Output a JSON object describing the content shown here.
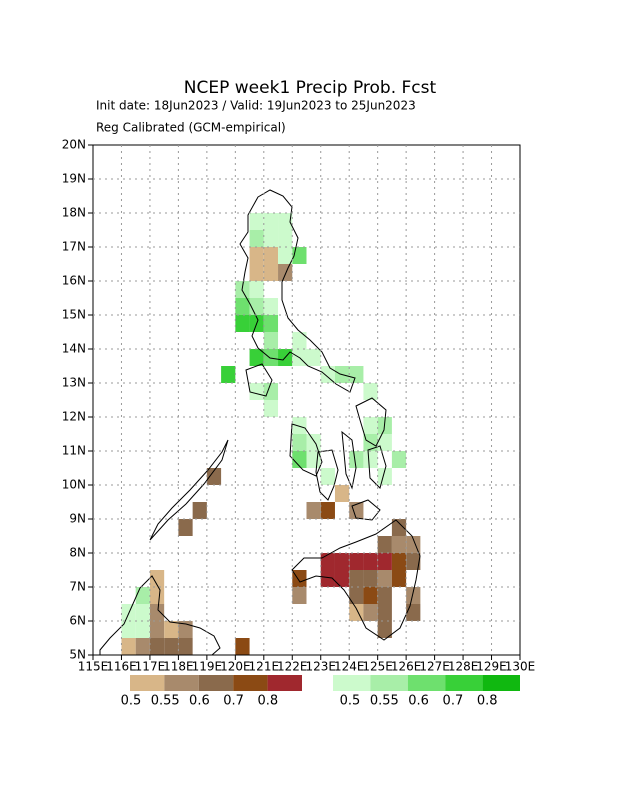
{
  "chart_data": {
    "type": "gridmap",
    "title": "NCEP week1 Precip Prob. Fcst",
    "subtitle": "Init date: 18Jun2023 / Valid: 19Jun2023 to 25Jun2023",
    "note": "Reg Calibrated (GCM-empirical)",
    "xlim": [
      115,
      130
    ],
    "ylim": [
      5,
      20
    ],
    "xticks": [
      {
        "value": 115,
        "label": "115E"
      },
      {
        "value": 116,
        "label": "116E"
      },
      {
        "value": 117,
        "label": "117E"
      },
      {
        "value": 118,
        "label": "118E"
      },
      {
        "value": 119,
        "label": "119E"
      },
      {
        "value": 120,
        "label": "120E"
      },
      {
        "value": 121,
        "label": "121E"
      },
      {
        "value": 122,
        "label": "122E"
      },
      {
        "value": 123,
        "label": "123E"
      },
      {
        "value": 124,
        "label": "124E"
      },
      {
        "value": 125,
        "label": "125E"
      },
      {
        "value": 126,
        "label": "126E"
      },
      {
        "value": 127,
        "label": "127E"
      },
      {
        "value": 128,
        "label": "128E"
      },
      {
        "value": 129,
        "label": "129E"
      },
      {
        "value": 130,
        "label": "130E"
      }
    ],
    "yticks": [
      {
        "value": 5,
        "label": "5N"
      },
      {
        "value": 6,
        "label": "6N"
      },
      {
        "value": 7,
        "label": "7N"
      },
      {
        "value": 8,
        "label": "8N"
      },
      {
        "value": 9,
        "label": "9N"
      },
      {
        "value": 10,
        "label": "10N"
      },
      {
        "value": 11,
        "label": "11N"
      },
      {
        "value": 12,
        "label": "12N"
      },
      {
        "value": 13,
        "label": "13N"
      },
      {
        "value": 14,
        "label": "14N"
      },
      {
        "value": 15,
        "label": "15N"
      },
      {
        "value": 16,
        "label": "16N"
      },
      {
        "value": 17,
        "label": "17N"
      },
      {
        "value": 18,
        "label": "18N"
      },
      {
        "value": 19,
        "label": "19N"
      },
      {
        "value": 20,
        "label": "20N"
      }
    ],
    "grid": true,
    "dry": {
      "levels": [
        0.5,
        0.55,
        0.6,
        0.7,
        0.8
      ],
      "colors": [
        "#d8b688",
        "#a88a6c",
        "#8a6a4c",
        "#8b4a14",
        "#a0282e"
      ],
      "cells": [
        [
          120.5,
          16.5,
          0
        ],
        [
          121,
          16.5,
          0
        ],
        [
          120.5,
          16,
          0
        ],
        [
          121,
          16,
          0
        ],
        [
          121.5,
          16,
          1
        ],
        [
          119,
          10,
          2
        ],
        [
          118.5,
          9,
          2
        ],
        [
          118,
          8.5,
          2
        ],
        [
          117,
          7,
          0
        ],
        [
          117,
          6.5,
          0
        ],
        [
          117,
          6,
          1
        ],
        [
          116,
          5,
          0
        ],
        [
          116.5,
          5,
          1
        ],
        [
          117,
          5,
          2
        ],
        [
          117.5,
          5,
          2
        ],
        [
          118,
          5,
          2
        ],
        [
          117,
          5.5,
          1
        ],
        [
          117.5,
          5.5,
          0
        ],
        [
          118,
          5.5,
          1
        ],
        [
          120,
          5,
          3
        ],
        [
          123,
          7.5,
          4
        ],
        [
          123.5,
          7.5,
          4
        ],
        [
          124,
          7.5,
          4
        ],
        [
          124.5,
          7.5,
          4
        ],
        [
          125,
          7.5,
          4
        ],
        [
          123,
          7,
          4
        ],
        [
          123.5,
          7,
          4
        ],
        [
          125.5,
          8.5,
          2
        ],
        [
          125,
          8,
          2
        ],
        [
          125.5,
          8,
          1
        ],
        [
          126,
          8,
          1
        ],
        [
          125.5,
          7.5,
          3
        ],
        [
          126,
          7.5,
          2
        ],
        [
          124.5,
          7,
          2
        ],
        [
          125,
          7,
          1
        ],
        [
          125.5,
          7,
          3
        ],
        [
          124,
          7,
          2
        ],
        [
          124,
          6.5,
          2
        ],
        [
          124.5,
          6.5,
          3
        ],
        [
          125,
          6.5,
          2
        ],
        [
          126,
          6.5,
          1
        ],
        [
          126,
          6,
          2
        ],
        [
          124,
          6,
          0
        ],
        [
          124.5,
          6,
          1
        ],
        [
          125,
          6,
          2
        ],
        [
          125,
          5.5,
          2
        ],
        [
          122,
          7,
          3
        ],
        [
          122,
          6.5,
          1
        ],
        [
          123,
          9,
          3
        ],
        [
          122.5,
          9,
          1
        ],
        [
          123.5,
          9.5,
          0
        ],
        [
          124,
          9,
          1
        ]
      ]
    },
    "wet": {
      "levels": [
        0.5,
        0.55,
        0.6,
        0.7,
        0.8
      ],
      "colors": [
        "#ccfacc",
        "#a8eea8",
        "#6ee06e",
        "#38d038",
        "#10b810"
      ],
      "cells": [
        [
          120.5,
          17.5,
          0
        ],
        [
          121,
          17.5,
          0
        ],
        [
          121.5,
          17.5,
          0
        ],
        [
          121,
          17,
          0
        ],
        [
          121.5,
          17,
          0
        ],
        [
          120.5,
          17,
          1
        ],
        [
          122,
          16.5,
          2
        ],
        [
          121.5,
          16.5,
          0
        ],
        [
          120,
          15.5,
          1
        ],
        [
          120.5,
          15.5,
          0
        ],
        [
          120,
          15,
          2
        ],
        [
          120.5,
          15,
          1
        ],
        [
          121,
          15,
          0
        ],
        [
          120,
          14.5,
          3
        ],
        [
          120.5,
          14.5,
          3
        ],
        [
          121,
          14.5,
          2
        ],
        [
          121,
          14,
          1
        ],
        [
          120.5,
          13.5,
          3
        ],
        [
          121,
          13.5,
          2
        ],
        [
          121.5,
          13.5,
          3
        ],
        [
          122,
          13.5,
          0
        ],
        [
          119.5,
          13,
          3
        ],
        [
          120.5,
          12.5,
          0
        ],
        [
          121,
          12.5,
          1
        ],
        [
          121,
          12,
          0
        ],
        [
          122,
          14,
          0
        ],
        [
          122.5,
          13.5,
          0
        ],
        [
          123,
          13,
          0
        ],
        [
          123.5,
          13,
          1
        ],
        [
          124,
          13,
          1
        ],
        [
          124.5,
          12.5,
          0
        ],
        [
          124.5,
          11.5,
          0
        ],
        [
          125,
          11.5,
          1
        ],
        [
          125,
          11,
          0
        ],
        [
          124.5,
          11,
          1
        ],
        [
          124,
          10.5,
          1
        ],
        [
          125.5,
          10.5,
          1
        ],
        [
          125,
          10,
          0
        ],
        [
          122,
          11,
          1
        ],
        [
          122,
          10.5,
          2
        ],
        [
          122.5,
          10.5,
          0
        ],
        [
          122.5,
          11,
          0
        ],
        [
          123,
          10,
          0
        ],
        [
          122,
          11.5,
          0
        ],
        [
          124.5,
          10.5,
          0
        ],
        [
          116,
          6,
          0
        ],
        [
          116.5,
          6.5,
          1
        ],
        [
          116.5,
          6,
          0
        ],
        [
          116,
          5.5,
          0
        ],
        [
          116.5,
          5.5,
          0
        ]
      ]
    }
  }
}
